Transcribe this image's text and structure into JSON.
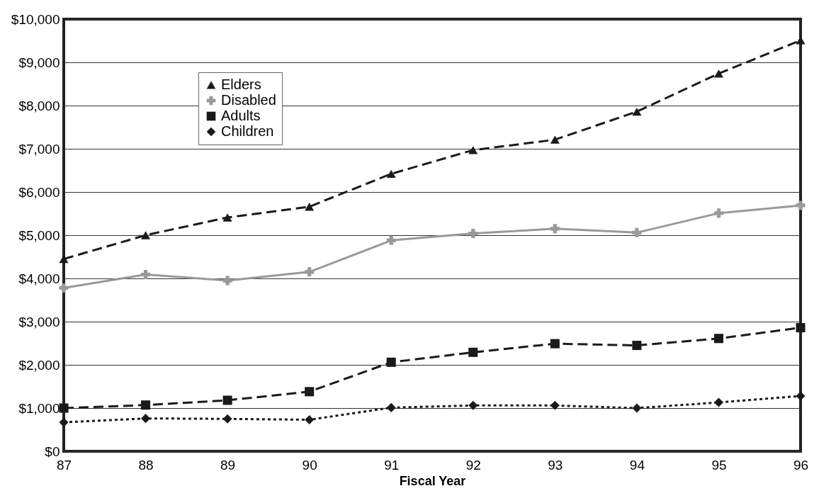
{
  "chart_data": {
    "type": "line",
    "xlabel": "Fiscal Year",
    "categories": [
      "87",
      "88",
      "89",
      "90",
      "91",
      "92",
      "93",
      "94",
      "95",
      "96"
    ],
    "series": [
      {
        "name": "Elders",
        "color": "#1a1a1a",
        "marker": "triangle",
        "line_style": "dashed",
        "values": [
          4450,
          5000,
          5410,
          5660,
          6420,
          6970,
          7210,
          7860,
          8740,
          9510
        ]
      },
      {
        "name": "Disabled",
        "color": "#999999",
        "marker": "cross",
        "line_style": "solid",
        "values": [
          3780,
          4090,
          3950,
          4150,
          4880,
          5040,
          5150,
          5060,
          5510,
          5690
        ]
      },
      {
        "name": "Adults",
        "color": "#1a1a1a",
        "marker": "square",
        "line_style": "dashed",
        "values": [
          1000,
          1070,
          1180,
          1380,
          2060,
          2290,
          2490,
          2450,
          2610,
          2860
        ]
      },
      {
        "name": "Children",
        "color": "#1a1a1a",
        "marker": "diamond",
        "line_style": "dotted",
        "values": [
          670,
          760,
          750,
          730,
          1010,
          1060,
          1060,
          1000,
          1130,
          1280
        ]
      }
    ],
    "ylim": [
      0,
      10000
    ],
    "yticks": [
      {
        "value": 0,
        "label": "$0"
      },
      {
        "value": 1000,
        "label": "$1,000"
      },
      {
        "value": 2000,
        "label": "$2,000"
      },
      {
        "value": 3000,
        "label": "$3,000"
      },
      {
        "value": 4000,
        "label": "$4,000"
      },
      {
        "value": 5000,
        "label": "$5,000"
      },
      {
        "value": 6000,
        "label": "$6,000"
      },
      {
        "value": 7000,
        "label": "$7,000"
      },
      {
        "value": 8000,
        "label": "$8,000"
      },
      {
        "value": 9000,
        "label": "$9,000"
      },
      {
        "value": 10000,
        "label": "$10,000"
      }
    ],
    "grid": "y",
    "legend": "top left"
  }
}
